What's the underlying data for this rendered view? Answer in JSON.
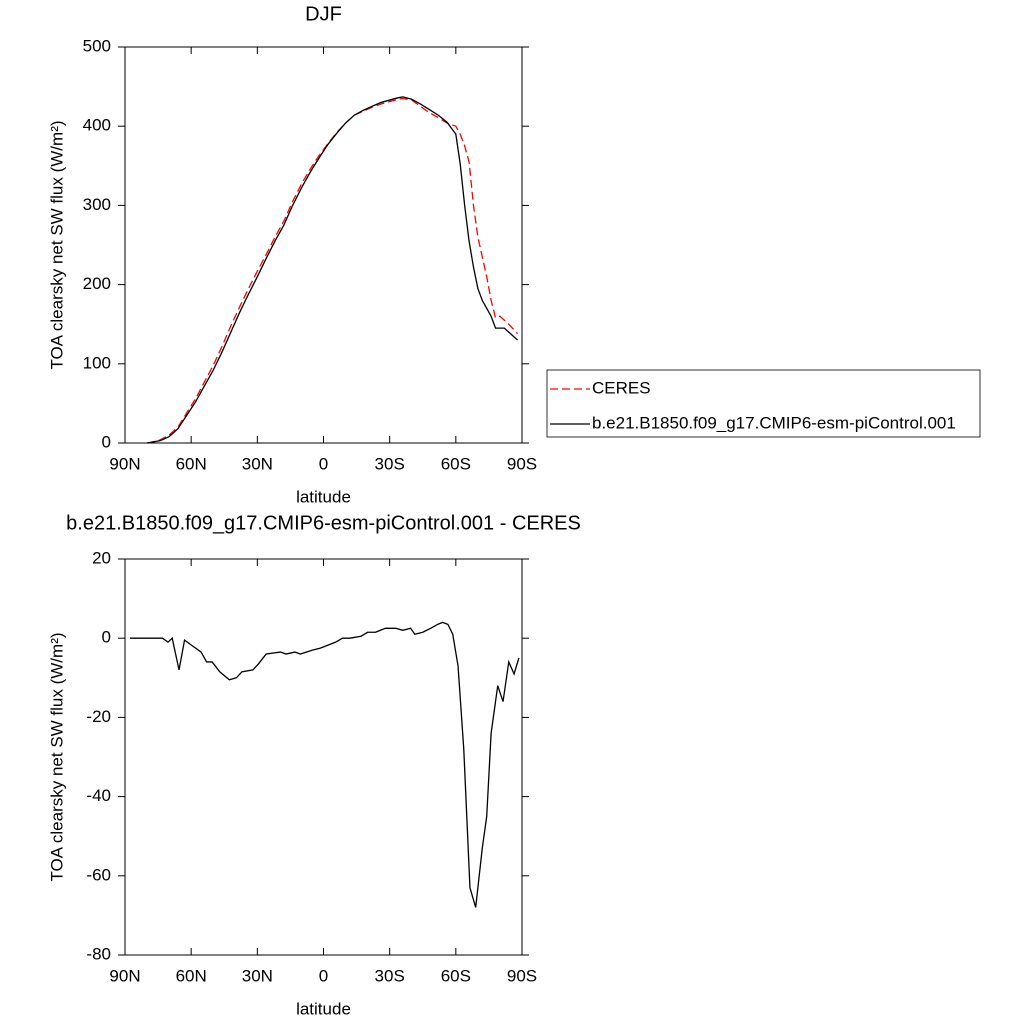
{
  "chart_data": [
    {
      "type": "line",
      "title": "DJF",
      "xlabel": "latitude",
      "ylabel": "TOA clearsky net SW flux (W/m²)",
      "xlim": [
        90,
        -90
      ],
      "xticks": [
        {
          "value": 90,
          "label": "90N"
        },
        {
          "value": 60,
          "label": "60N"
        },
        {
          "value": 30,
          "label": "30N"
        },
        0,
        {
          "value": -30,
          "label": "30S"
        },
        {
          "value": -60,
          "label": "60S"
        },
        {
          "value": -90,
          "label": "90S"
        }
      ],
      "ylim": [
        0,
        500
      ],
      "yticks": [
        0,
        100,
        200,
        300,
        400,
        500
      ],
      "legend": "right",
      "series": [
        {
          "name": "CERES",
          "color": "#ff0000",
          "line_style": "dashed",
          "x": [
            80,
            78,
            74,
            70,
            66,
            62,
            58,
            54,
            50,
            46,
            42,
            38,
            34,
            30,
            26,
            22,
            18,
            14,
            10,
            6,
            2,
            -2,
            -6,
            -10,
            -14,
            -18,
            -22,
            -26,
            -30,
            -34,
            -36,
            -40,
            -44,
            -48,
            -52,
            -56,
            -60,
            -62,
            -64,
            -66,
            -68,
            -70,
            -72,
            -74,
            -76,
            -78,
            -80,
            -84,
            -88
          ],
          "values": [
            0,
            1,
            4,
            10,
            20,
            38,
            56,
            77,
            98,
            122,
            148,
            172,
            195,
            217,
            238,
            260,
            280,
            305,
            327,
            346,
            363,
            378,
            392,
            404,
            414,
            419,
            424,
            428,
            431,
            434,
            435,
            433,
            425,
            417,
            411,
            404,
            400,
            390,
            375,
            355,
            300,
            260,
            235,
            210,
            180,
            158,
            160,
            150,
            138
          ]
        },
        {
          "name": "b.e21.B1850.f09_g17.CMIP6-esm-piControl.001",
          "color": "#000000",
          "line_style": "solid",
          "x": [
            80,
            78,
            74,
            70,
            66,
            62,
            58,
            54,
            50,
            46,
            42,
            38,
            34,
            30,
            26,
            22,
            18,
            14,
            10,
            6,
            2,
            -2,
            -6,
            -10,
            -14,
            -18,
            -22,
            -26,
            -30,
            -34,
            -36,
            -40,
            -44,
            -48,
            -52,
            -56,
            -60,
            -62,
            -64,
            -66,
            -68,
            -70,
            -72,
            -74,
            -76,
            -78,
            -82,
            -86,
            -88
          ],
          "values": [
            0,
            1,
            3,
            8,
            18,
            35,
            52,
            72,
            92,
            115,
            140,
            165,
            188,
            210,
            233,
            255,
            275,
            300,
            322,
            342,
            360,
            377,
            391,
            404,
            414,
            420,
            425,
            430,
            433,
            436,
            437,
            434,
            428,
            421,
            414,
            405,
            390,
            352,
            300,
            255,
            222,
            195,
            180,
            170,
            160,
            145,
            145,
            135,
            130
          ]
        }
      ]
    },
    {
      "type": "line",
      "title": "b.e21.B1850.f09_g17.CMIP6-esm-piControl.001 - CERES",
      "xlabel": "latitude",
      "ylabel": "TOA clearsky net SW flux (W/m²)",
      "xlim": [
        90,
        -90
      ],
      "xticks": [
        {
          "value": 90,
          "label": "90N"
        },
        {
          "value": 60,
          "label": "60N"
        },
        {
          "value": 30,
          "label": "30N"
        },
        0,
        {
          "value": -30,
          "label": "30S"
        },
        {
          "value": -60,
          "label": "60S"
        },
        {
          "value": -90,
          "label": "90S"
        }
      ],
      "ylim": [
        -80,
        20
      ],
      "yticks": [
        -80,
        -60,
        -40,
        -20,
        0,
        20
      ],
      "series": [
        {
          "color": "#000000",
          "line_style": "solid",
          "x": [
            87.7,
            80,
            73,
            70.5,
            68.6,
            65.5,
            63,
            60.5,
            55.5,
            53,
            50.5,
            47,
            42.7,
            39.5,
            37,
            32,
            29.5,
            26,
            19.5,
            17,
            13,
            10.5,
            5,
            1.4,
            -5.5,
            -8.6,
            -12,
            -17,
            -20,
            -23.6,
            -28,
            -32.7,
            -36,
            -39.5,
            -41.4,
            -45,
            -48.6,
            -51.8,
            -54,
            -56.4,
            -58.6,
            -61,
            -63.6,
            -66.4,
            -69,
            -72,
            -74,
            -76,
            -79,
            -81.4,
            -84,
            -86.4,
            -88.6
          ],
          "values": [
            0,
            0,
            0,
            -1,
            0,
            -8,
            -0.5,
            -1.5,
            -3.5,
            -6,
            -6,
            -8.5,
            -10.5,
            -10,
            -8.5,
            -8,
            -6.5,
            -4,
            -3.5,
            -4,
            -3.5,
            -4,
            -3,
            -2.5,
            -1,
            0,
            0,
            0.5,
            1.5,
            1.5,
            2.5,
            2.5,
            2,
            2.5,
            1,
            1.5,
            2.5,
            3.5,
            4,
            3.5,
            1,
            -7,
            -28,
            -63,
            -68,
            -53,
            -45,
            -24,
            -12,
            -16,
            -6,
            -9,
            -5
          ]
        }
      ]
    }
  ]
}
